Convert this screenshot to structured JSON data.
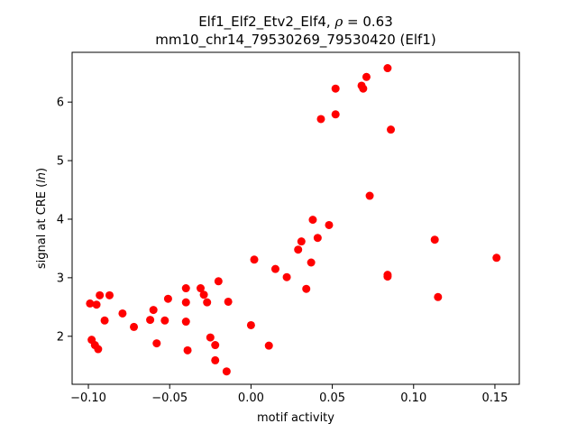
{
  "chart_data": {
    "type": "scatter",
    "title_line1_prefix": "Elf1_Elf2_Etv2_Elf4, ",
    "title_rho_symbol": "ρ",
    "title_rho_value": " = 0.63",
    "title_line2": "mm10_chr14_79530269_79530420 (Elf1)",
    "xlabel": "motif activity",
    "ylabel_prefix": "signal at CRE (",
    "ylabel_italic": "ln",
    "ylabel_suffix": ")",
    "xlim": [
      -0.11,
      0.165
    ],
    "ylim": [
      1.18,
      6.85
    ],
    "x_ticks": [
      -0.1,
      -0.05,
      0.0,
      0.05,
      0.1,
      0.15
    ],
    "x_tick_labels": [
      "−0.10",
      "−0.05",
      "0.00",
      "0.05",
      "0.10",
      "0.15"
    ],
    "y_ticks": [
      2,
      3,
      4,
      5,
      6
    ],
    "y_tick_labels": [
      "2",
      "3",
      "4",
      "5",
      "6"
    ],
    "grid": false,
    "marker_color": "#ff0000",
    "points": [
      {
        "x": -0.099,
        "y": 2.56
      },
      {
        "x": -0.095,
        "y": 2.54
      },
      {
        "x": -0.093,
        "y": 2.7
      },
      {
        "x": -0.087,
        "y": 2.7
      },
      {
        "x": -0.09,
        "y": 2.27
      },
      {
        "x": -0.098,
        "y": 1.94
      },
      {
        "x": -0.096,
        "y": 1.85
      },
      {
        "x": -0.094,
        "y": 1.78
      },
      {
        "x": -0.079,
        "y": 2.39
      },
      {
        "x": -0.072,
        "y": 2.16
      },
      {
        "x": -0.062,
        "y": 2.28
      },
      {
        "x": -0.06,
        "y": 2.45
      },
      {
        "x": -0.058,
        "y": 1.88
      },
      {
        "x": -0.053,
        "y": 2.27
      },
      {
        "x": -0.051,
        "y": 2.64
      },
      {
        "x": -0.04,
        "y": 2.82
      },
      {
        "x": -0.04,
        "y": 2.58
      },
      {
        "x": -0.04,
        "y": 2.25
      },
      {
        "x": -0.039,
        "y": 1.76
      },
      {
        "x": -0.031,
        "y": 2.82
      },
      {
        "x": -0.029,
        "y": 2.71
      },
      {
        "x": -0.027,
        "y": 2.58
      },
      {
        "x": -0.025,
        "y": 1.98
      },
      {
        "x": -0.022,
        "y": 1.85
      },
      {
        "x": -0.022,
        "y": 1.59
      },
      {
        "x": -0.02,
        "y": 2.94
      },
      {
        "x": -0.014,
        "y": 2.59
      },
      {
        "x": -0.015,
        "y": 1.4
      },
      {
        "x": 0.0,
        "y": 2.19
      },
      {
        "x": 0.002,
        "y": 3.31
      },
      {
        "x": 0.011,
        "y": 1.84
      },
      {
        "x": 0.015,
        "y": 3.15
      },
      {
        "x": 0.022,
        "y": 3.01
      },
      {
        "x": 0.029,
        "y": 3.48
      },
      {
        "x": 0.031,
        "y": 3.62
      },
      {
        "x": 0.034,
        "y": 2.81
      },
      {
        "x": 0.037,
        "y": 3.26
      },
      {
        "x": 0.038,
        "y": 3.99
      },
      {
        "x": 0.041,
        "y": 3.68
      },
      {
        "x": 0.048,
        "y": 3.9
      },
      {
        "x": 0.043,
        "y": 5.71
      },
      {
        "x": 0.052,
        "y": 5.79
      },
      {
        "x": 0.052,
        "y": 6.23
      },
      {
        "x": 0.068,
        "y": 6.28
      },
      {
        "x": 0.069,
        "y": 6.23
      },
      {
        "x": 0.071,
        "y": 6.43
      },
      {
        "x": 0.073,
        "y": 4.4
      },
      {
        "x": 0.084,
        "y": 6.58
      },
      {
        "x": 0.086,
        "y": 5.53
      },
      {
        "x": 0.084,
        "y": 3.05
      },
      {
        "x": 0.084,
        "y": 3.02
      },
      {
        "x": 0.113,
        "y": 3.65
      },
      {
        "x": 0.115,
        "y": 2.67
      },
      {
        "x": 0.151,
        "y": 3.34
      }
    ]
  }
}
